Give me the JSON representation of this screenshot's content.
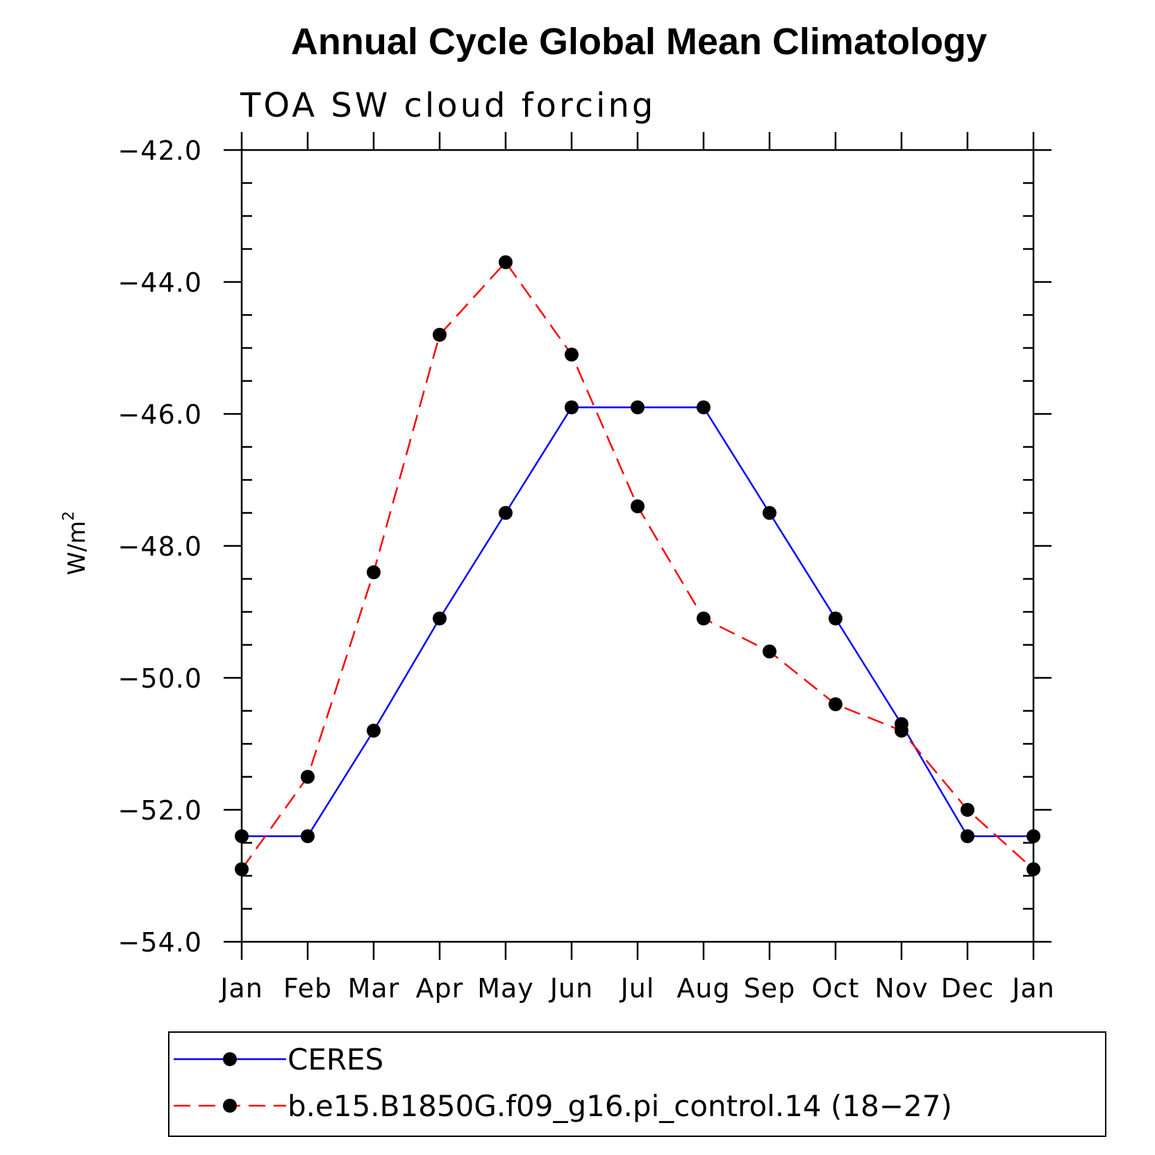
{
  "chart_data": {
    "type": "line",
    "title": "Annual Cycle Global Mean Climatology",
    "subtitle": "TOA SW cloud forcing",
    "ylabel": "W/m",
    "ylabel_sup": "2",
    "ylim": [
      -54.0,
      -42.0
    ],
    "yticks": [
      -42.0,
      -44.0,
      -46.0,
      -48.0,
      -50.0,
      -52.0,
      -54.0
    ],
    "ytick_labels": [
      "−42.0",
      "−44.0",
      "−46.0",
      "−48.0",
      "−50.0",
      "−52.0",
      "−54.0"
    ],
    "categories": [
      "Jan",
      "Feb",
      "Mar",
      "Apr",
      "May",
      "Jun",
      "Jul",
      "Aug",
      "Sep",
      "Oct",
      "Nov",
      "Dec",
      "Jan"
    ],
    "legend_position": "bottom",
    "series": [
      {
        "name": "CERES",
        "color": "#0000ff",
        "line_style": "solid",
        "values": [
          -52.4,
          -52.4,
          -50.8,
          -49.1,
          -47.5,
          -45.9,
          -45.9,
          -45.9,
          -47.5,
          -49.1,
          -50.7,
          -52.4,
          -52.4
        ]
      },
      {
        "name": "b.e15.B1850G.f09_g16.pi_control.14 (18−27)",
        "color": "#ff0000",
        "line_style": "dashed",
        "values": [
          -52.9,
          -51.5,
          -48.4,
          -44.8,
          -43.7,
          -45.1,
          -47.4,
          -49.1,
          -49.6,
          -50.4,
          -50.8,
          -52.0,
          -52.9
        ]
      }
    ]
  }
}
